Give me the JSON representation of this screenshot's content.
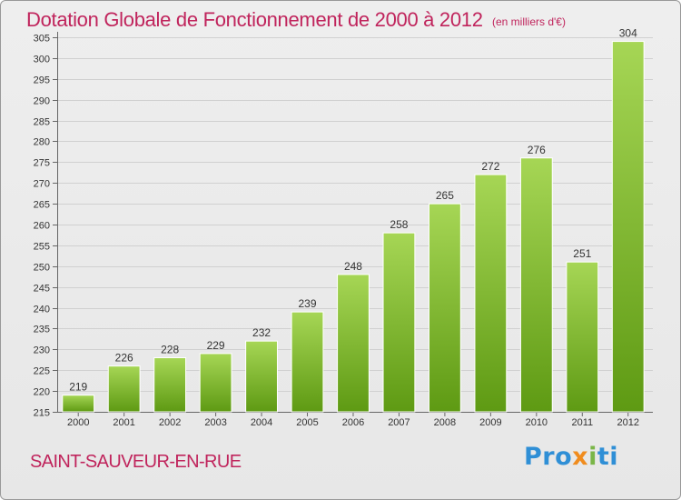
{
  "header": {
    "title": "Dotation Globale de Fonctionnement de 2000 à 2012",
    "subtitle": "(en milliers d'€)"
  },
  "footer": {
    "commune": "SAINT-SAUVEUR-EN-RUE",
    "logo_text": "Proxiti"
  },
  "colors": {
    "title": "#c0245c",
    "bar_light": "#a6d655",
    "bar_dark": "#5e9a13"
  },
  "chart_data": {
    "type": "bar",
    "title": "Dotation Globale de Fonctionnement de 2000 à 2012",
    "subtitle": "(en milliers d'€)",
    "xlabel": "",
    "ylabel": "",
    "categories": [
      "2000",
      "2001",
      "2002",
      "2003",
      "2004",
      "2005",
      "2006",
      "2007",
      "2008",
      "2009",
      "2010",
      "2011",
      "2012"
    ],
    "values": [
      219,
      226,
      228,
      229,
      232,
      239,
      248,
      258,
      265,
      272,
      276,
      251,
      304
    ],
    "ylim": [
      215,
      305
    ],
    "ytick_step": 5,
    "grid": true,
    "legend": "none"
  }
}
